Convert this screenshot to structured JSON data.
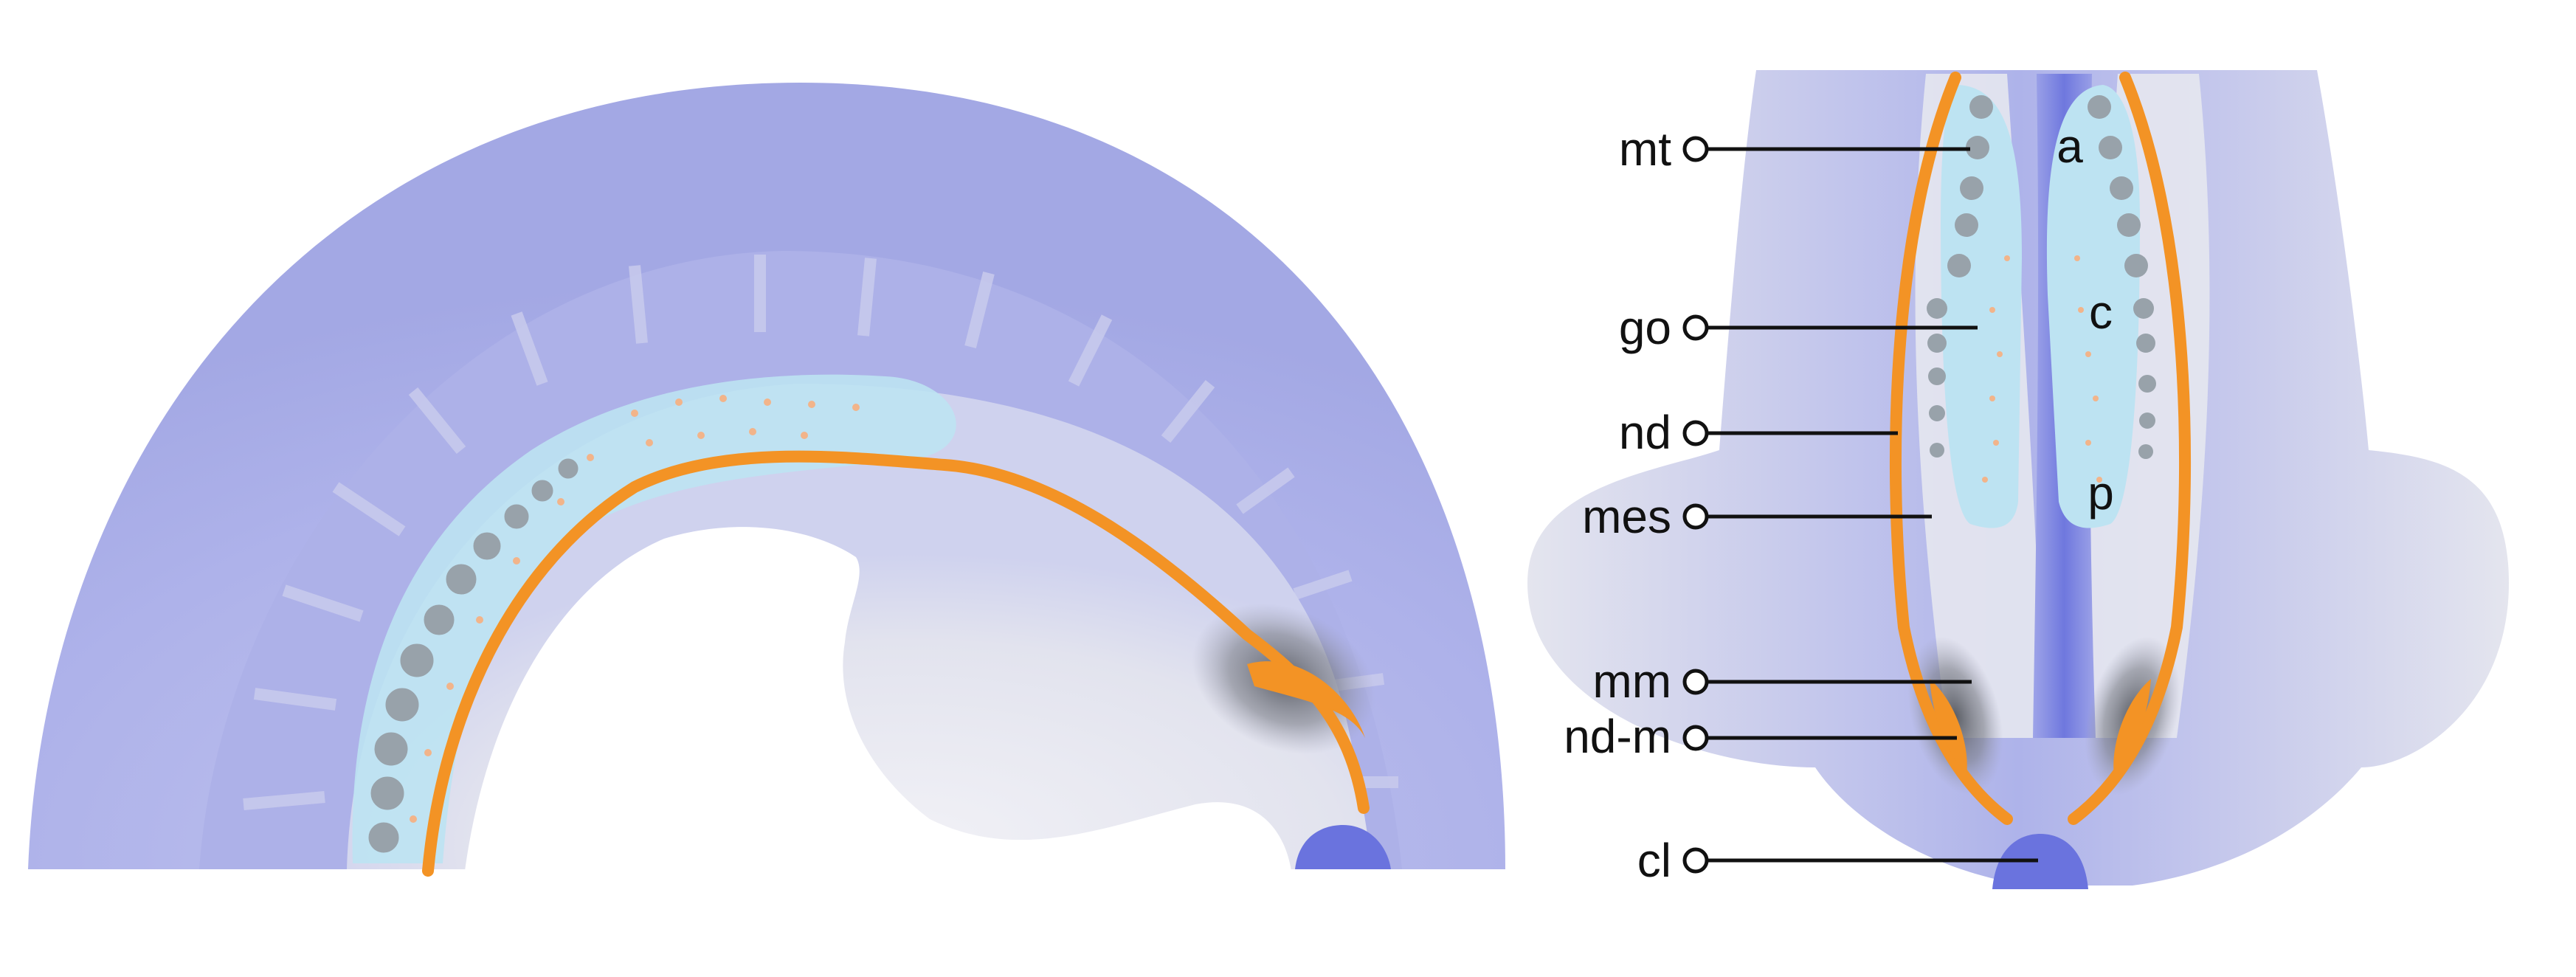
{
  "colors": {
    "tissue_outer": "#a7ace6",
    "tissue_light": "#dfe0ee",
    "tissue_mid": "#bcc0ea",
    "mesonephros_fill": "#bfe4f2",
    "duct": "#f39325",
    "tubule_gray": "#98a2aa",
    "dark_shadow": "#6b6e78",
    "cloaca": "#6a73de",
    "midline": "#7a82e0",
    "leader": "#111111"
  },
  "labels": [
    {
      "id": "mt",
      "text": "mt"
    },
    {
      "id": "go",
      "text": "go"
    },
    {
      "id": "nd",
      "text": "nd"
    },
    {
      "id": "mes",
      "text": "mes"
    },
    {
      "id": "mm",
      "text": "mm"
    },
    {
      "id": "nd-m",
      "text": "nd-m"
    },
    {
      "id": "cl",
      "text": "cl"
    }
  ],
  "region_labels": [
    {
      "id": "a",
      "text": "a"
    },
    {
      "id": "c",
      "text": "c"
    },
    {
      "id": "p",
      "text": "p"
    }
  ]
}
